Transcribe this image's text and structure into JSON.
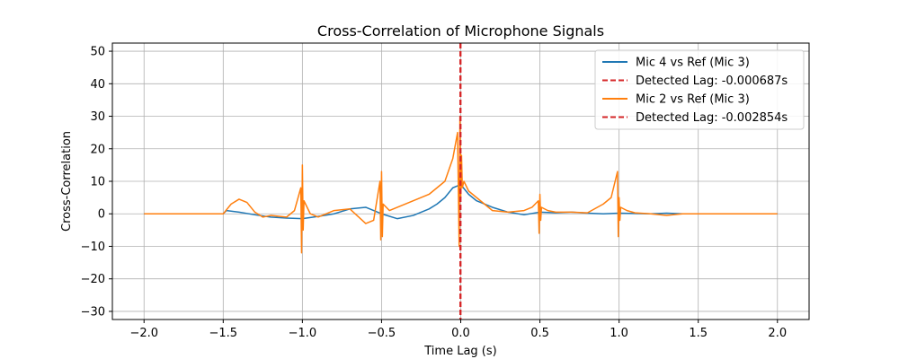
{
  "chart_data": {
    "type": "line",
    "title": "Cross-Correlation of Microphone Signals",
    "xlabel": "Time Lag (s)",
    "ylabel": "Cross-Correlation",
    "xlim": [
      -2.2,
      2.2
    ],
    "ylim": [
      -32.5,
      52.5
    ],
    "x_ticks": [
      -2.0,
      -1.5,
      -1.0,
      -0.5,
      0.0,
      0.5,
      1.0,
      1.5,
      2.0
    ],
    "x_tick_labels": [
      "−2.0",
      "−1.5",
      "−1.0",
      "−0.5",
      "0.0",
      "0.5",
      "1.0",
      "1.5",
      "2.0"
    ],
    "y_ticks": [
      -30,
      -20,
      -10,
      0,
      10,
      20,
      30,
      40,
      50
    ],
    "y_tick_labels": [
      "−30",
      "−20",
      "−10",
      "0",
      "10",
      "20",
      "30",
      "40",
      "50"
    ],
    "grid": true,
    "legend_position": "top-right",
    "series": [
      {
        "name": "Mic 4 vs Ref (Mic 3)",
        "color": "#1f77b4",
        "style": "solid",
        "x": [
          -2.0,
          -1.5,
          -1.48,
          -1.4,
          -1.3,
          -1.2,
          -1.1,
          -1.0,
          -0.9,
          -0.8,
          -0.7,
          -0.6,
          -0.5,
          -0.4,
          -0.3,
          -0.2,
          -0.15,
          -0.1,
          -0.05,
          0.0,
          0.05,
          0.1,
          0.2,
          0.3,
          0.4,
          0.5,
          0.6,
          0.7,
          0.8,
          0.9,
          1.0,
          1.1,
          1.2,
          1.3,
          1.4,
          1.5,
          2.0
        ],
        "y": [
          0,
          0,
          1,
          0.5,
          -0.3,
          -1,
          -1.3,
          -1.5,
          -0.8,
          0,
          1.5,
          2,
          0,
          -1.5,
          -0.5,
          1.5,
          3,
          5,
          8,
          9,
          6,
          4,
          2,
          0.5,
          -0.3,
          0.5,
          0.3,
          0.5,
          0.2,
          0,
          0.2,
          0.1,
          0,
          0.2,
          0,
          0,
          0
        ]
      },
      {
        "name": "Mic 2 vs Ref (Mic 3)",
        "color": "#ff7f0e",
        "style": "solid",
        "x": [
          -2.0,
          -1.5,
          -1.45,
          -1.4,
          -1.35,
          -1.3,
          -1.25,
          -1.2,
          -1.1,
          -1.05,
          -1.01,
          -1.005,
          -1.0,
          -0.995,
          -0.99,
          -0.97,
          -0.95,
          -0.9,
          -0.8,
          -0.7,
          -0.6,
          -0.55,
          -0.51,
          -0.505,
          -0.5,
          -0.495,
          -0.49,
          -0.45,
          -0.4,
          -0.3,
          -0.2,
          -0.1,
          -0.05,
          -0.02,
          -0.01,
          -0.005,
          0.0,
          0.005,
          0.01,
          0.02,
          0.05,
          0.1,
          0.2,
          0.3,
          0.4,
          0.45,
          0.49,
          0.495,
          0.5,
          0.505,
          0.51,
          0.55,
          0.6,
          0.7,
          0.8,
          0.9,
          0.95,
          0.99,
          0.995,
          1.0,
          1.005,
          1.01,
          1.05,
          1.1,
          1.2,
          1.3,
          1.4,
          1.5,
          2.0
        ],
        "y": [
          0,
          0,
          3,
          4.5,
          3.5,
          0.5,
          -1,
          -0.5,
          -1,
          1,
          8,
          -12,
          15,
          -5,
          4,
          2,
          0,
          -1,
          1,
          1.5,
          -3,
          -2,
          10,
          -8,
          13,
          -7,
          3,
          1,
          2,
          4,
          6,
          10,
          17,
          25,
          -10,
          30,
          5,
          18,
          8,
          10,
          7,
          5,
          1,
          0.5,
          1,
          2,
          4,
          -6,
          6,
          -2,
          2,
          1,
          0.5,
          0.5,
          0.3,
          3,
          5,
          13,
          -7,
          5,
          -2,
          2,
          1,
          0.3,
          0,
          -0.5,
          0,
          0,
          0
        ]
      }
    ],
    "vlines": [
      {
        "name": "Detected Lag: -0.000687s",
        "x": -0.000687,
        "color": "#d62728",
        "style": "dashed"
      },
      {
        "name": "Detected Lag: -0.002854s",
        "x": -0.002854,
        "color": "#d62728",
        "style": "dashed"
      }
    ],
    "legend_order": [
      {
        "label": "Mic 4 vs Ref (Mic 3)",
        "color": "#1f77b4",
        "style": "solid"
      },
      {
        "label": "Detected Lag: -0.000687s",
        "color": "#d62728",
        "style": "dashed"
      },
      {
        "label": "Mic 2 vs Ref (Mic 3)",
        "color": "#ff7f0e",
        "style": "solid"
      },
      {
        "label": "Detected Lag: -0.002854s",
        "color": "#d62728",
        "style": "dashed"
      }
    ]
  }
}
